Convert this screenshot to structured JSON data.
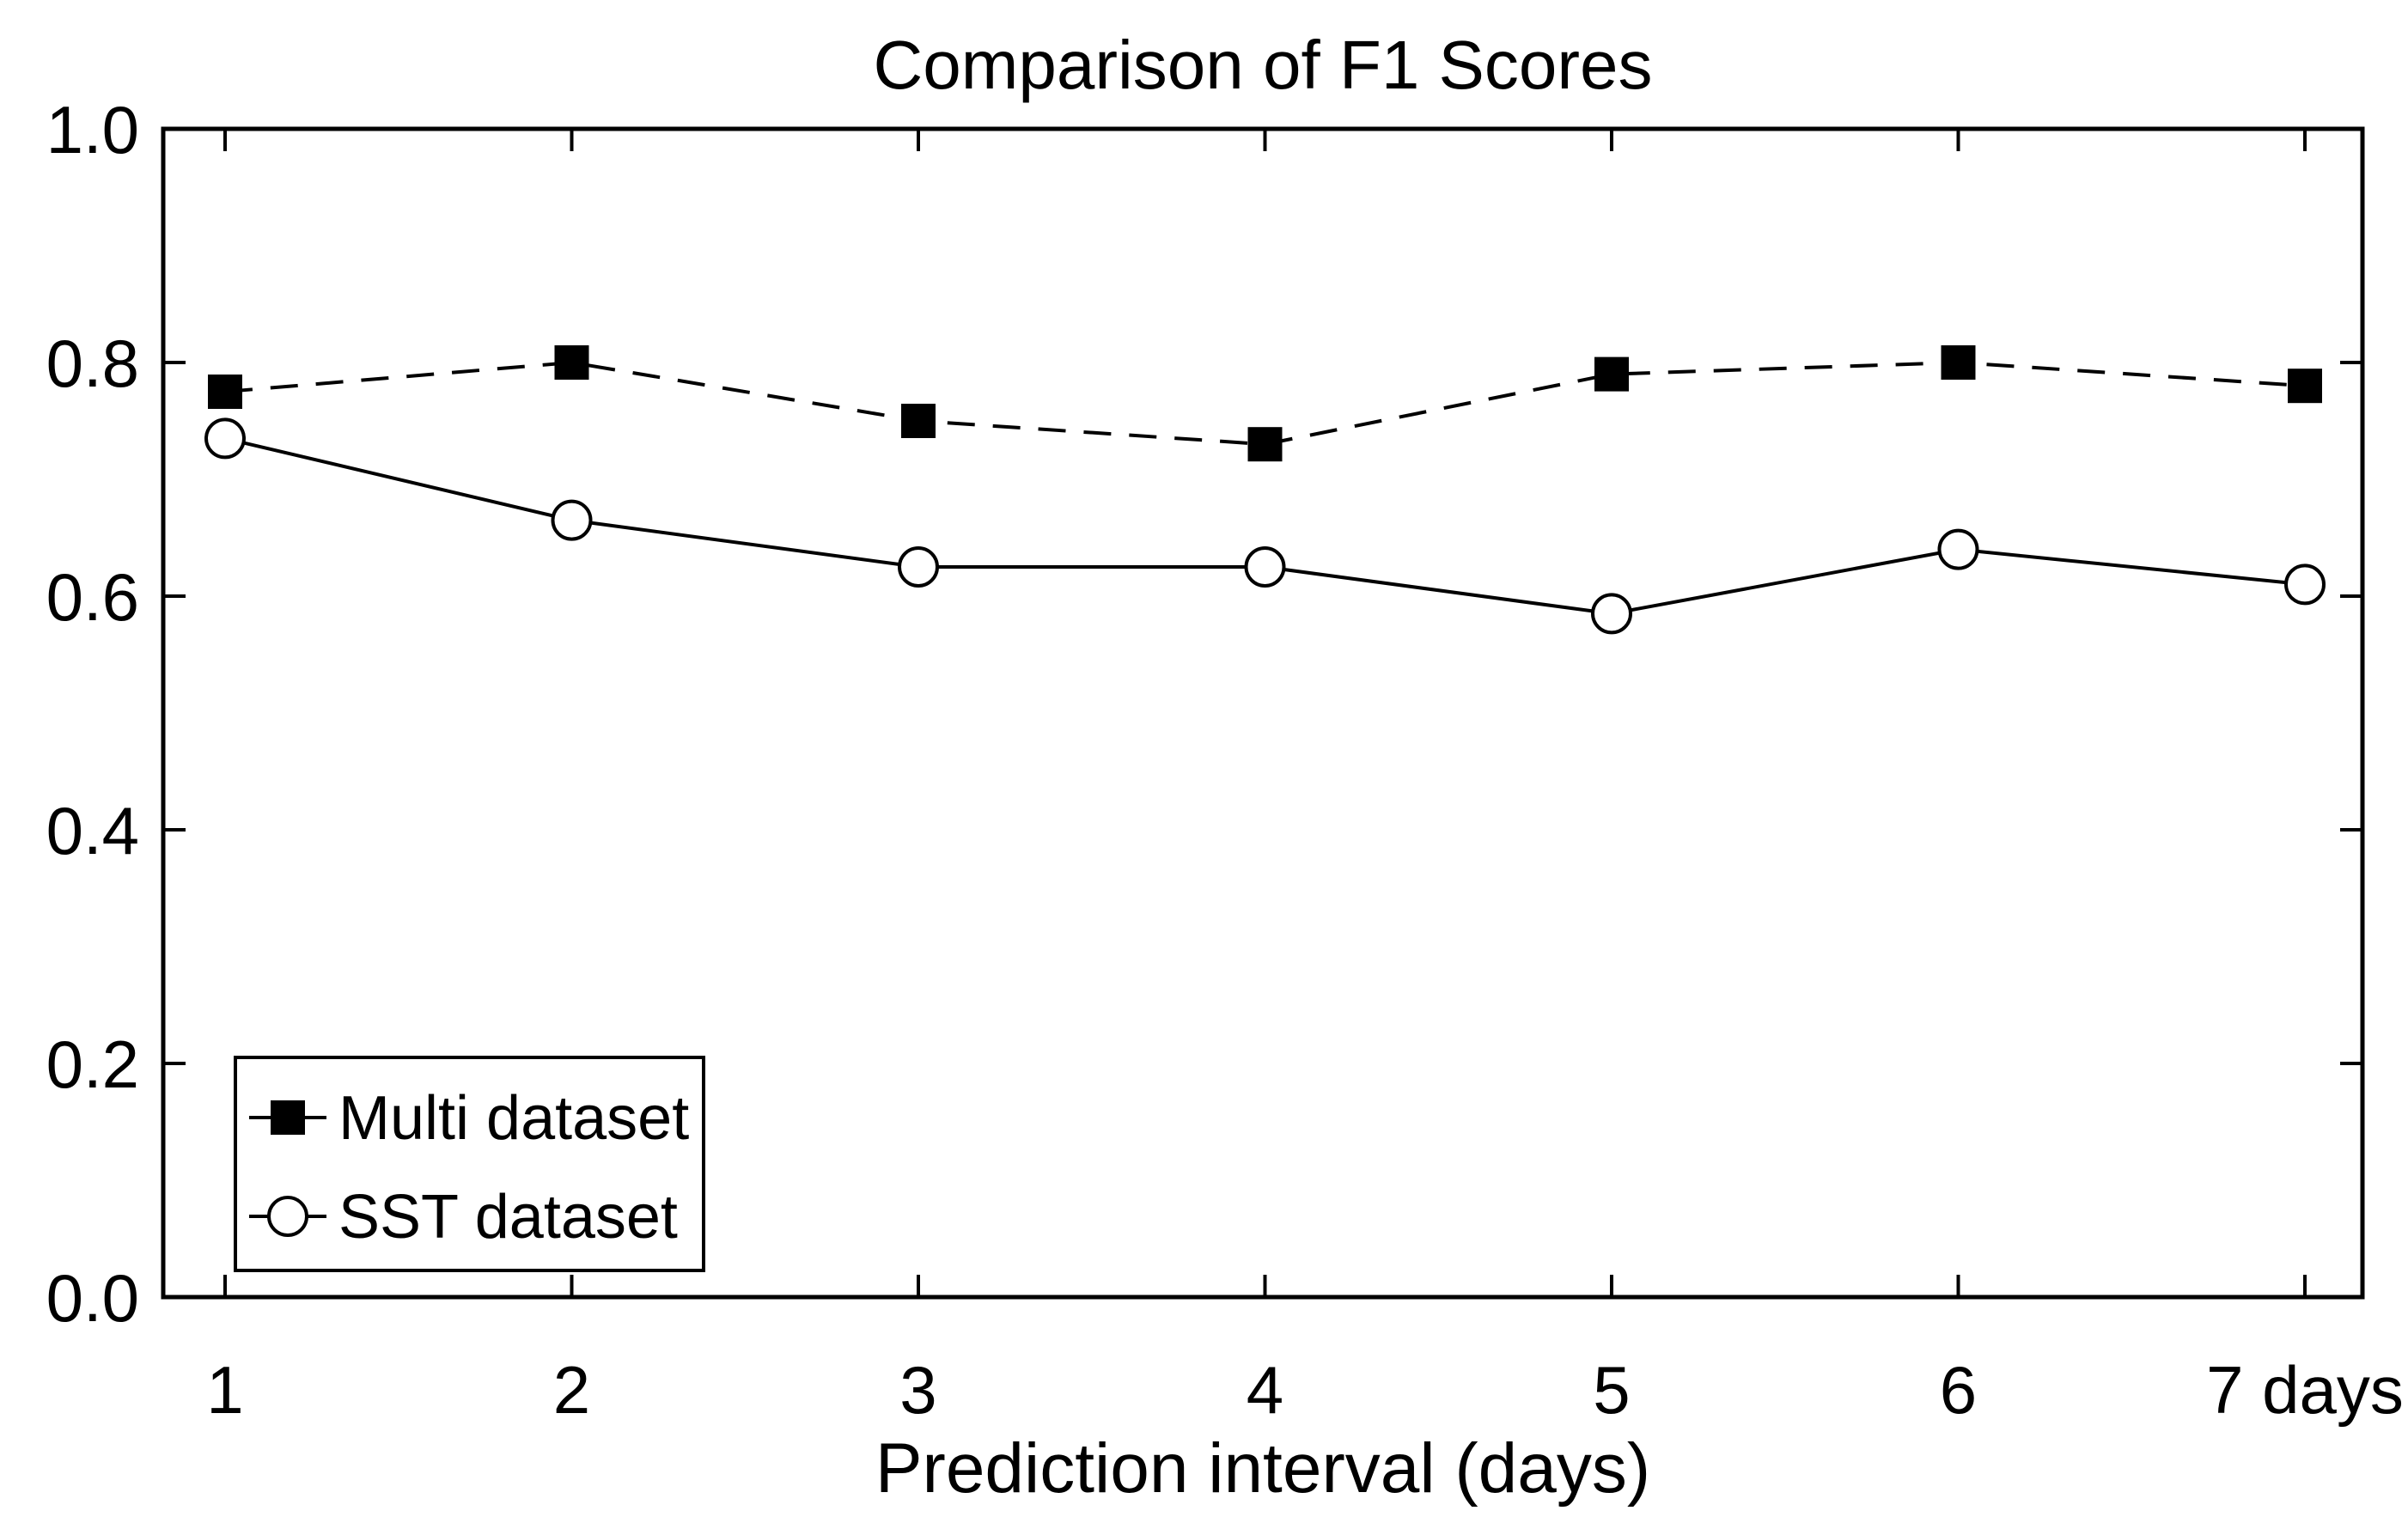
{
  "page": {
    "background_color": "#ffffff",
    "foreground_color": "#000000"
  },
  "chart_data": {
    "type": "line",
    "title": "Comparison of F1 Scores",
    "xlabel": "Prediction interval (days)",
    "ylabel": "",
    "x": [
      1,
      2,
      3,
      4,
      5,
      6,
      7
    ],
    "x_tick_labels": [
      "1",
      "2",
      "3",
      "4",
      "5",
      "6",
      "7 days"
    ],
    "y_ticks": [
      0.0,
      0.2,
      0.4,
      0.6,
      0.8,
      1.0
    ],
    "y_tick_labels": [
      "0.0",
      "0.2",
      "0.4",
      "0.6",
      "0.8",
      "1.0"
    ],
    "xlim": [
      0.82,
      7.17
    ],
    "ylim": [
      0.0,
      1.0
    ],
    "grid": false,
    "box": true,
    "tick_direction": "in",
    "legend_position": "lower-left",
    "series": [
      {
        "name": "Multi dataset",
        "line_style": "dashed",
        "marker": "filled-square",
        "color": "#000000",
        "values": [
          0.775,
          0.8,
          0.75,
          0.73,
          0.79,
          0.8,
          0.78
        ]
      },
      {
        "name": "SST dataset",
        "line_style": "solid",
        "marker": "open-circle",
        "color": "#000000",
        "marker_fill": "#ffffff",
        "values": [
          0.735,
          0.665,
          0.625,
          0.625,
          0.585,
          0.64,
          0.61
        ]
      }
    ]
  }
}
